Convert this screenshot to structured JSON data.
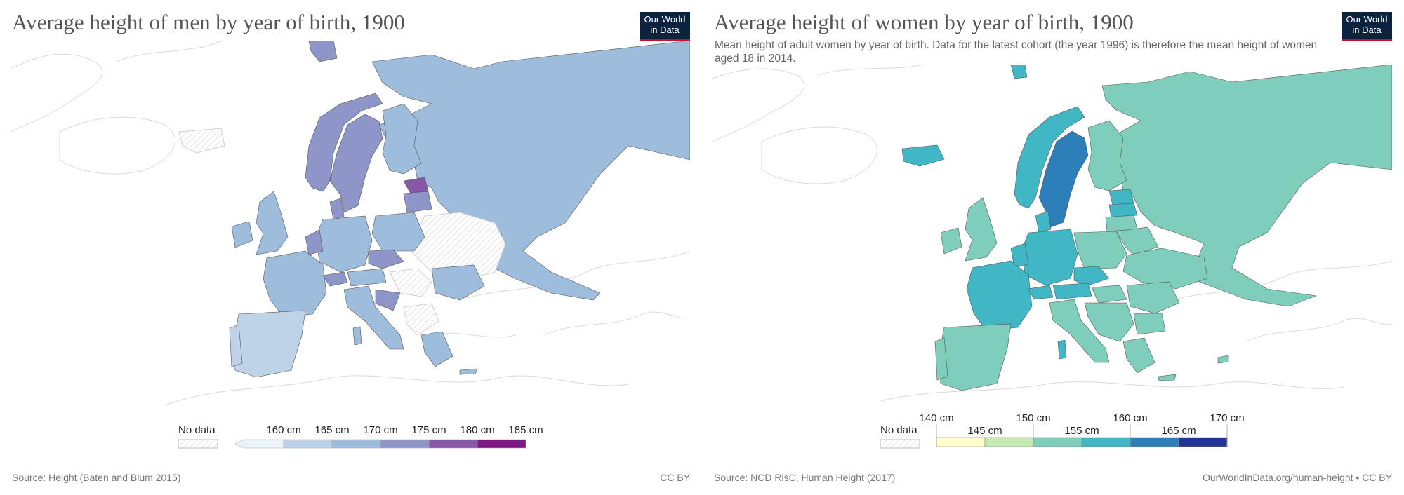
{
  "left": {
    "title": "Average height of men by year of birth, 1900",
    "logo_line1": "Our World",
    "logo_line2": "in Data",
    "no_data_label": "No data",
    "legend_labels": [
      "160 cm",
      "165 cm",
      "170 cm",
      "175 cm",
      "180 cm",
      "185 cm"
    ],
    "legend_colors": [
      "#eaf4f8",
      "#bed3e7",
      "#9ebcdb",
      "#8e95c9",
      "#8858a8",
      "#7a1a81"
    ],
    "source": "Source: Height (Baten and Blum 2015)",
    "license": "CC BY"
  },
  "right": {
    "title": "Average height of women by year of birth, 1900",
    "subtitle": "Mean height of adult women by year of birth. Data for the latest cohort (the year 1996) is therefore the mean height of women aged 18 in 2014.",
    "logo_line1": "Our World",
    "logo_line2": "in Data",
    "no_data_label": "No data",
    "legend_top_labels": [
      "140 cm",
      "150 cm",
      "160 cm",
      "170 cm"
    ],
    "legend_bottom_labels": [
      "145 cm",
      "155 cm",
      "165 cm"
    ],
    "legend_colors": [
      "#ffffcc",
      "#c7e9b4",
      "#7fcdbb",
      "#41b6c4",
      "#2c7fb8",
      "#253494"
    ],
    "source": "Source: NCD RisC, Human Height (2017)",
    "license": "OurWorldInData.org/human-height • CC BY"
  },
  "colors": {
    "men_default": "#9ebcdb",
    "men_light": "#bed3e7",
    "men_mid": "#8e95c9",
    "men_dark": "#8858a8",
    "women_default": "#7fcdbb",
    "women_mid": "#41b6c4",
    "women_dark": "#2c7fb8",
    "outline": "#d4d4d4",
    "border": "#555555"
  }
}
